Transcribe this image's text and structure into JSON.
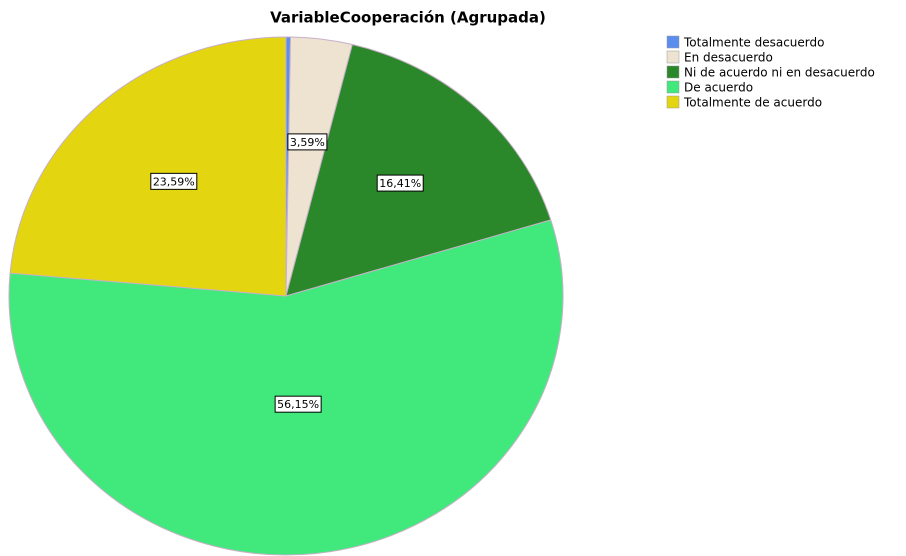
{
  "chart_data": {
    "type": "pie",
    "title": "VariableCooperación (Agrupada)",
    "categories": [
      "Totalmente desacuerdo",
      "En desacuerdo",
      "Ni de acuerdo ni en desacuerdo",
      "De acuerdo",
      "Totalmente de acuerdo"
    ],
    "values": [
      0.26,
      3.59,
      16.41,
      56.15,
      23.59
    ],
    "value_labels": [
      null,
      "3,59%",
      "16,41%",
      "56,15%",
      "23,59%"
    ],
    "colors": [
      "#5b8def",
      "#ede3d0",
      "#2a882a",
      "#41e97d",
      "#e3d510"
    ],
    "legend": "top-right"
  }
}
